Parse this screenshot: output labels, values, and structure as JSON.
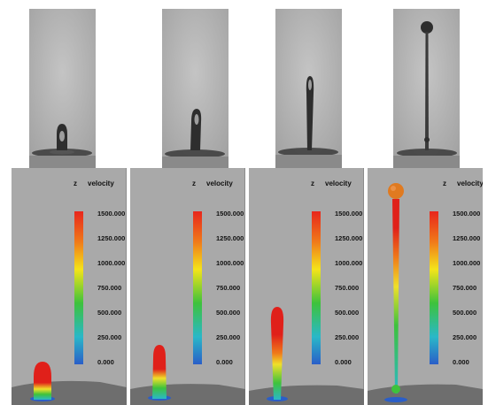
{
  "photos": [
    {
      "id": "photo-1",
      "stage": 1
    },
    {
      "id": "photo-2",
      "stage": 2
    },
    {
      "id": "photo-3",
      "stage": 3
    },
    {
      "id": "photo-4",
      "stage": 4
    }
  ],
  "panels": [
    {
      "id": "panel-1",
      "axis_label": "z",
      "quantity_label": "velocity",
      "ticks": [
        "1500.000",
        "1250.000",
        "1000.000",
        "750.000",
        "500.000",
        "250.000",
        "0.000"
      ]
    },
    {
      "id": "panel-2",
      "axis_label": "z",
      "quantity_label": "velocity",
      "ticks": [
        "1500.000",
        "1250.000",
        "1000.000",
        "750.000",
        "500.000",
        "250.000",
        "0.000"
      ]
    },
    {
      "id": "panel-3",
      "axis_label": "z",
      "quantity_label": "velocity",
      "ticks": [
        "1500.000",
        "1250.000",
        "1000.000",
        "750.000",
        "500.000",
        "250.000",
        "0.000"
      ]
    },
    {
      "id": "panel-4",
      "axis_label": "z",
      "quantity_label": "velocity",
      "ticks": [
        "1500.000",
        "1250.000",
        "1000.000",
        "750.000",
        "500.000",
        "250.000",
        "0.000"
      ]
    }
  ],
  "colors": {
    "panel_bg": "#a9a9a9",
    "colorbar_stops": [
      "#e8261c",
      "#f07a1a",
      "#f4e41a",
      "#3ec23c",
      "#2ab8c8",
      "#2a5ec8"
    ],
    "base_plate": "#6e6e6e"
  }
}
